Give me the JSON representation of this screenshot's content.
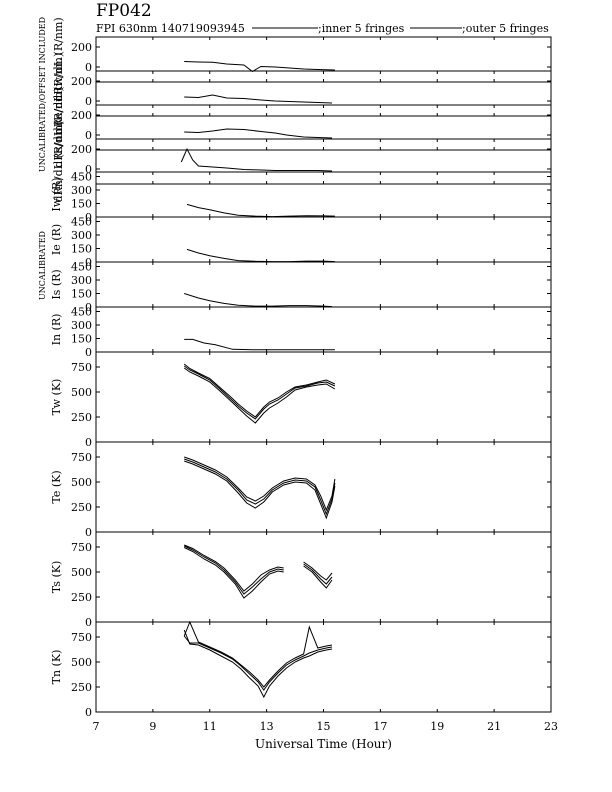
{
  "header": {
    "title": "FP042",
    "subtitle": "FPI 630nm 140719093945",
    "legend": [
      ";inner 5 fringes",
      ";outer 5 fringes"
    ]
  },
  "side_labels": {
    "calibrated": "UNCALIBRATED/OFFSET INCLUDED",
    "uncalibrated": "UNCALIBRATED"
  },
  "chart_data": [
    {
      "type": "line",
      "panel": "dRw",
      "ylabel": "dRw/dL (R/nm)",
      "ylim": [
        -150,
        300
      ],
      "yticks": [
        0,
        200
      ],
      "x": [
        10.1,
        10.6,
        11.1,
        11.6,
        12.2,
        12.5,
        12.8,
        13.3,
        13.8,
        14.3,
        14.8,
        15.4
      ],
      "series": [
        {
          "values": [
            55,
            50,
            48,
            30,
            20,
            -45,
            5,
            0,
            -10,
            -20,
            -25,
            -30
          ]
        }
      ]
    },
    {
      "type": "line",
      "panel": "dRe",
      "ylabel": "dRe/dL (R/nm)",
      "ylim": [
        -150,
        300
      ],
      "yticks": [
        0,
        200
      ],
      "x": [
        10.1,
        10.6,
        11.1,
        11.6,
        12.2,
        12.8,
        13.3,
        13.8,
        14.3,
        14.8,
        15.3
      ],
      "series": [
        {
          "values": [
            40,
            35,
            60,
            30,
            25,
            10,
            0,
            -5,
            -10,
            -15,
            -20
          ]
        }
      ]
    },
    {
      "type": "line",
      "panel": "dRs",
      "ylabel": "dRs/dL (R/nm)",
      "ylim": [
        -150,
        300
      ],
      "yticks": [
        0,
        200
      ],
      "x": [
        10.1,
        10.6,
        11.1,
        11.6,
        12.2,
        12.8,
        13.3,
        13.7,
        14.3,
        14.8,
        15.3
      ],
      "series": [
        {
          "values": [
            30,
            25,
            40,
            60,
            55,
            35,
            20,
            0,
            -20,
            -25,
            -30
          ]
        }
      ]
    },
    {
      "type": "line",
      "panel": "dRn",
      "ylabel": "dRn/dL (R/nm)",
      "ylim": [
        -150,
        300
      ],
      "yticks": [
        0,
        200
      ],
      "x": [
        10.0,
        10.2,
        10.4,
        10.6,
        11.1,
        11.6,
        12.2,
        12.8,
        13.3,
        13.8,
        14.3,
        14.8,
        15.3
      ],
      "series": [
        {
          "values": [
            70,
            200,
            90,
            30,
            20,
            10,
            -5,
            -10,
            -15,
            -15,
            -15,
            -15,
            -20
          ]
        }
      ]
    },
    {
      "type": "line",
      "panel": "Iw",
      "ylabel": "Iw (R)",
      "ylim": [
        0,
        500
      ],
      "yticks": [
        0,
        150,
        300,
        450
      ],
      "x": [
        10.2,
        10.6,
        11.0,
        11.5,
        12.0,
        12.6,
        13.2,
        13.8,
        14.4,
        15.0,
        15.4
      ],
      "series": [
        {
          "values": [
            140,
            105,
            80,
            45,
            20,
            10,
            5,
            10,
            15,
            12,
            10
          ]
        }
      ]
    },
    {
      "type": "line",
      "panel": "Ie",
      "ylabel": "Ie (R)",
      "ylim": [
        0,
        500
      ],
      "yticks": [
        0,
        150,
        300,
        450
      ],
      "x": [
        10.2,
        10.6,
        11.0,
        11.5,
        12.0,
        12.6,
        13.2,
        13.8,
        14.4,
        15.0,
        15.4
      ],
      "series": [
        {
          "values": [
            140,
            100,
            70,
            40,
            15,
            8,
            5,
            5,
            10,
            10,
            5
          ]
        }
      ]
    },
    {
      "type": "line",
      "panel": "Is",
      "ylabel": "Is (R)",
      "ylim": [
        0,
        500
      ],
      "yticks": [
        0,
        150,
        300,
        450
      ],
      "x": [
        10.1,
        10.6,
        11.0,
        11.5,
        12.0,
        12.6,
        13.2,
        13.8,
        14.4,
        15.0,
        15.3
      ],
      "series": [
        {
          "values": [
            150,
            100,
            70,
            40,
            20,
            10,
            10,
            15,
            15,
            10,
            5
          ]
        }
      ]
    },
    {
      "type": "line",
      "panel": "In",
      "ylabel": "In (R)",
      "ylim": [
        0,
        500
      ],
      "yticks": [
        0,
        150,
        300,
        450
      ],
      "x": [
        10.1,
        10.4,
        10.8,
        11.2,
        11.8,
        12.5,
        13.2,
        13.8,
        14.4,
        15.0,
        15.4
      ],
      "series": [
        {
          "values": [
            140,
            140,
            100,
            80,
            30,
            25,
            25,
            25,
            25,
            25,
            25
          ]
        }
      ]
    },
    {
      "type": "line",
      "panel": "Tw",
      "ylabel": "Tw (K)",
      "ylim": [
        0,
        900
      ],
      "yticks": [
        0,
        250,
        500,
        750
      ],
      "x": [
        10.1,
        10.3,
        10.6,
        11.0,
        11.4,
        11.7,
        12.0,
        12.3,
        12.6,
        12.9,
        13.1,
        13.4,
        13.7,
        14.0,
        14.4,
        14.8,
        15.1,
        15.4
      ],
      "series": [
        {
          "values": [
            760,
            720,
            680,
            620,
            520,
            440,
            360,
            290,
            230,
            330,
            380,
            420,
            480,
            540,
            560,
            590,
            600,
            560
          ]
        },
        {
          "values": [
            740,
            700,
            660,
            600,
            500,
            420,
            340,
            260,
            190,
            290,
            340,
            390,
            450,
            520,
            550,
            570,
            580,
            530
          ]
        },
        {
          "values": [
            780,
            735,
            690,
            635,
            535,
            460,
            380,
            310,
            250,
            350,
            400,
            440,
            500,
            550,
            570,
            600,
            620,
            580
          ]
        }
      ]
    },
    {
      "type": "line",
      "panel": "Te",
      "ylabel": "Te (K)",
      "ylim": [
        0,
        900
      ],
      "yticks": [
        0,
        250,
        500,
        750
      ],
      "x": [
        10.1,
        10.4,
        10.8,
        11.2,
        11.6,
        12.0,
        12.3,
        12.6,
        12.9,
        13.2,
        13.6,
        14.0,
        14.4,
        14.7,
        14.9,
        15.1,
        15.3,
        15.4
      ],
      "series": [
        {
          "values": [
            730,
            700,
            650,
            600,
            530,
            420,
            320,
            280,
            330,
            420,
            490,
            520,
            510,
            450,
            320,
            180,
            330,
            490
          ]
        },
        {
          "values": [
            710,
            680,
            630,
            580,
            510,
            390,
            290,
            240,
            300,
            400,
            470,
            500,
            490,
            420,
            280,
            140,
            300,
            460
          ]
        },
        {
          "values": [
            750,
            720,
            670,
            620,
            550,
            440,
            350,
            310,
            360,
            440,
            510,
            540,
            530,
            470,
            360,
            220,
            360,
            530
          ]
        }
      ]
    },
    {
      "type": "line",
      "panel": "Ts",
      "ylabel": "Ts (K)",
      "ylim": [
        0,
        900
      ],
      "yticks": [
        0,
        250,
        500,
        750
      ],
      "x": [
        10.1,
        10.4,
        10.8,
        11.2,
        11.5,
        11.9,
        12.2,
        12.5,
        12.8,
        13.1,
        13.4,
        13.6,
        13.8,
        14.3,
        14.6,
        14.9,
        15.1,
        15.3
      ],
      "series": [
        {
          "values": [
            760,
            720,
            650,
            590,
            520,
            400,
            280,
            350,
            430,
            500,
            530,
            520,
            null,
            580,
            520,
            430,
            380,
            450
          ]
        },
        {
          "values": [
            745,
            705,
            630,
            570,
            500,
            380,
            240,
            310,
            400,
            480,
            510,
            500,
            null,
            560,
            500,
            400,
            340,
            420
          ]
        },
        {
          "values": [
            770,
            735,
            665,
            605,
            540,
            420,
            310,
            380,
            470,
            520,
            550,
            540,
            null,
            600,
            540,
            460,
            420,
            490
          ]
        }
      ]
    },
    {
      "type": "line",
      "panel": "Tn",
      "ylabel": "Tn (K)",
      "ylim": [
        0,
        900
      ],
      "yticks": [
        0,
        250,
        500,
        750
      ],
      "x": [
        10.1,
        10.3,
        10.6,
        11.0,
        11.4,
        11.8,
        12.1,
        12.4,
        12.7,
        12.9,
        13.1,
        13.4,
        13.7,
        14.0,
        14.3,
        14.5,
        14.8,
        15.1,
        15.3
      ],
      "series": [
        {
          "values": [
            760,
            690,
            690,
            640,
            590,
            530,
            460,
            380,
            300,
            220,
            300,
            390,
            470,
            520,
            560,
            590,
            620,
            640,
            650
          ]
        },
        {
          "values": [
            820,
            680,
            670,
            620,
            560,
            500,
            430,
            340,
            260,
            150,
            260,
            360,
            440,
            500,
            540,
            560,
            600,
            620,
            630
          ]
        },
        {
          "values": [
            760,
            900,
            700,
            650,
            600,
            540,
            470,
            400,
            320,
            250,
            320,
            410,
            490,
            540,
            580,
            850,
            640,
            660,
            670
          ]
        }
      ]
    }
  ],
  "x_axis": {
    "label": "Universal Time (Hour)",
    "min": 7,
    "max": 23,
    "ticks": [
      "7",
      "9",
      "11",
      "13",
      "15",
      "17",
      "19",
      "21",
      "23"
    ]
  }
}
